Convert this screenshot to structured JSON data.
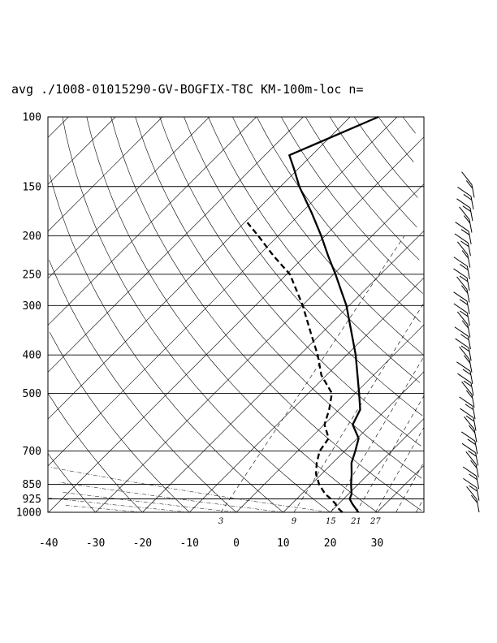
{
  "title": "avg ./1008-01015290-GV-BOGFIX-T8C KM-100m-loc n=",
  "chart_data": {
    "type": "line",
    "subtype": "skew-T log-P diagram",
    "title": "avg ./1008-01015290-GV-BOGFIX-T8C KM-100m-loc n=",
    "y_axis": {
      "scale": "log",
      "range": [
        1000,
        100
      ],
      "tick_labels": [
        "100",
        "150",
        "200",
        "250",
        "300",
        "400",
        "500",
        "700",
        "850",
        "925",
        "1000"
      ],
      "grid": true
    },
    "x_axis": {
      "range": [
        -40,
        40
      ],
      "tick_labels": [
        "-40",
        "-30",
        "-20",
        "-10",
        "0",
        "10",
        "20",
        "30"
      ]
    },
    "mixing_ratio_labels": [
      "3",
      "9",
      "15",
      "21",
      "27"
    ],
    "series": [
      {
        "role": "temperature",
        "style": "solid",
        "points": [
          {
            "p": 1000,
            "t": 26.0
          },
          {
            "p": 975,
            "t": 24.4
          },
          {
            "p": 950,
            "t": 22.8
          },
          {
            "p": 925,
            "t": 21.3
          },
          {
            "p": 900,
            "t": 20.7
          },
          {
            "p": 850,
            "t": 18.5
          },
          {
            "p": 800,
            "t": 16.4
          },
          {
            "p": 750,
            "t": 14.0
          },
          {
            "p": 700,
            "t": 12.3
          },
          {
            "p": 650,
            "t": 10.3
          },
          {
            "p": 600,
            "t": 6.1
          },
          {
            "p": 550,
            "t": 4.5
          },
          {
            "p": 500,
            "t": 0.8
          },
          {
            "p": 450,
            "t": -3.4
          },
          {
            "p": 400,
            "t": -8.1
          },
          {
            "p": 350,
            "t": -13.9
          },
          {
            "p": 300,
            "t": -20.6
          },
          {
            "p": 275,
            "t": -24.9
          },
          {
            "p": 250,
            "t": -29.6
          },
          {
            "p": 225,
            "t": -35.0
          },
          {
            "p": 200,
            "t": -40.8
          },
          {
            "p": 175,
            "t": -47.7
          },
          {
            "p": 150,
            "t": -56.0
          },
          {
            "p": 135,
            "t": -61.0
          },
          {
            "p": 125,
            "t": -64.8
          },
          {
            "p": 100,
            "t": -54.0
          }
        ]
      },
      {
        "role": "dewpoint",
        "style": "dashed",
        "points": [
          {
            "p": 1000,
            "t": 22.6
          },
          {
            "p": 975,
            "t": 20.7
          },
          {
            "p": 950,
            "t": 19.2
          },
          {
            "p": 925,
            "t": 17.3
          },
          {
            "p": 900,
            "t": 15.1
          },
          {
            "p": 850,
            "t": 11.7
          },
          {
            "p": 800,
            "t": 8.8
          },
          {
            "p": 750,
            "t": 6.6
          },
          {
            "p": 700,
            "t": 4.7
          },
          {
            "p": 650,
            "t": 3.9
          },
          {
            "p": 600,
            "t": 0.1
          },
          {
            "p": 550,
            "t": -2.1
          },
          {
            "p": 500,
            "t": -5.0
          },
          {
            "p": 450,
            "t": -11.1
          },
          {
            "p": 400,
            "t": -16.2
          },
          {
            "p": 350,
            "t": -22.6
          },
          {
            "p": 300,
            "t": -29.9
          },
          {
            "p": 250,
            "t": -39.3
          },
          {
            "p": 225,
            "t": -46.6
          },
          {
            "p": 200,
            "t": -54.2
          },
          {
            "p": 185,
            "t": -59.4
          }
        ]
      }
    ],
    "wind_barbs": {
      "location": "right",
      "count": 28
    }
  }
}
